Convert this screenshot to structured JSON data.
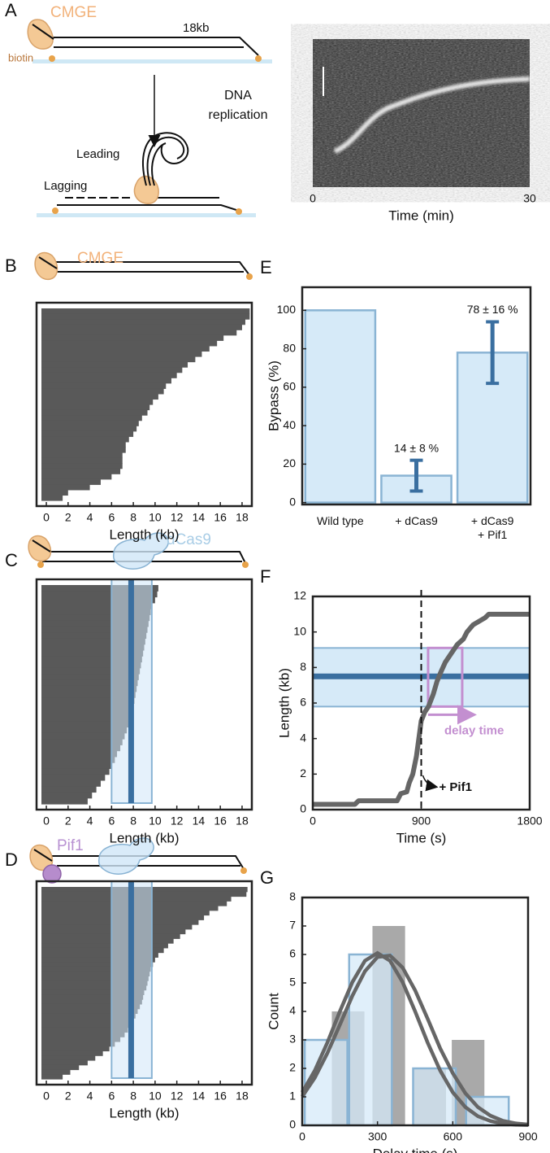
{
  "panels": [
    "A",
    "B",
    "C",
    "D",
    "E",
    "F",
    "G"
  ],
  "diagram": {
    "A": {
      "protein": "CMGE",
      "anchor": "biotin",
      "length": "18kb",
      "step": [
        "DNA",
        "replication"
      ],
      "leading": "Leading",
      "lagging": "Lagging"
    },
    "B": {
      "protein": "CMGE"
    },
    "C": {
      "block": "dCas9"
    },
    "D": {
      "helper": "Pif1"
    }
  },
  "chart_data": [
    {
      "type": "image",
      "xlabel": "Time (min)",
      "xlim": [
        0,
        30
      ],
      "xticks": [
        0,
        30
      ]
    },
    {
      "type": "raster",
      "xlabel": "Length (kb)",
      "color": "#595959",
      "xlim": [
        -0.9,
        18.9
      ],
      "xticks": [
        0,
        2,
        4,
        6,
        8,
        10,
        12,
        14,
        16,
        18
      ],
      "values": [
        18.7,
        18.7,
        18.3,
        18.0,
        17.5,
        16.3,
        15.7,
        15.0,
        14.3,
        13.7,
        13.0,
        12.5,
        12.0,
        11.5,
        11.0,
        10.8,
        10.3,
        9.8,
        9.5,
        9.3,
        8.8,
        8.5,
        8.3,
        8.0,
        7.6,
        7.3,
        7.3,
        7.0,
        7.0,
        7.0,
        6.8,
        6.0,
        5.0,
        4.0,
        2.0,
        1.5
      ]
    },
    {
      "type": "raster",
      "xlabel": "Length (kb)",
      "color": "#595959",
      "xlim": [
        -0.9,
        18.9
      ],
      "xticks": [
        0,
        2,
        4,
        6,
        8,
        10,
        12,
        14,
        16,
        18
      ],
      "band": [
        6,
        9.7
      ],
      "target": 7.8,
      "values": [
        10.3,
        10.2,
        10.0,
        9.7,
        9.6,
        9.5,
        9.4,
        9.3,
        9.2,
        9.1,
        9.0,
        8.9,
        8.8,
        8.7,
        8.6,
        8.5,
        8.4,
        8.3,
        8.2,
        8.1,
        8.0,
        7.9,
        7.8,
        7.6,
        7.4,
        7.2,
        7.0,
        6.8,
        6.5,
        6.3,
        6.0,
        5.8,
        5.4,
        5.0,
        4.6,
        4.2,
        3.8
      ]
    },
    {
      "type": "raster",
      "xlabel": "Length (kb)",
      "color": "#595959",
      "xlim": [
        -0.9,
        18.9
      ],
      "xticks": [
        0,
        2,
        4,
        6,
        8,
        10,
        12,
        14,
        16,
        18
      ],
      "band": [
        6,
        9.7
      ],
      "target": 7.8,
      "values": [
        18.5,
        18.4,
        17.0,
        16.6,
        15.8,
        15.0,
        14.5,
        14.0,
        13.4,
        12.8,
        12.3,
        11.7,
        11.2,
        10.8,
        10.3,
        10.0,
        9.8,
        9.6,
        9.5,
        9.4,
        9.3,
        9.2,
        9.0,
        8.9,
        8.8,
        8.6,
        8.4,
        8.2,
        8.0,
        7.8,
        7.5,
        7.2,
        6.8,
        6.3,
        5.8,
        5.2,
        4.5,
        3.8,
        3.0,
        2.2,
        1.5
      ]
    },
    {
      "type": "bar",
      "ylabel": "Bypass (%)",
      "categories": [
        "Wild type",
        "+ dCas9",
        "+ dCas9\n+ Pif1"
      ],
      "values": [
        100,
        14,
        78
      ],
      "errors": [
        null,
        8,
        16
      ],
      "value_labels": [
        null,
        "14 ± 8 %",
        "78 ± 16 %"
      ],
      "color": "#d6eaf8",
      "edgecolor": "#8ab4d4",
      "errorcolor": "#3a6fa0",
      "ylim": [
        -1,
        112
      ],
      "yticks": [
        0,
        20,
        40,
        60,
        80,
        100
      ]
    },
    {
      "type": "line",
      "xlabel": "Time (s)",
      "ylabel": "Length (kb)",
      "color": "#666666",
      "x": [
        0,
        350,
        380,
        700,
        730,
        780,
        800,
        830,
        860,
        880,
        900,
        930,
        960,
        1000,
        1030,
        1060,
        1100,
        1150,
        1200,
        1250,
        1280,
        1330,
        1380,
        1430,
        1460,
        1800
      ],
      "values": [
        0.3,
        0.3,
        0.5,
        0.5,
        0.9,
        1.0,
        1.5,
        2.0,
        3.0,
        4.0,
        5.0,
        5.5,
        5.8,
        6.5,
        7.2,
        7.7,
        8.3,
        8.8,
        9.3,
        9.6,
        10.0,
        10.4,
        10.6,
        10.8,
        11.0,
        11.0
      ],
      "band": [
        5.8,
        9.1
      ],
      "target": 7.5,
      "event": 900,
      "delay": [
        957,
        1240
      ],
      "annotations": [
        "delay time",
        "+ Pif1"
      ],
      "xlim": [
        0,
        1800
      ],
      "xticks": [
        0,
        900,
        1800
      ],
      "ylim": [
        0,
        12
      ],
      "yticks": [
        0,
        2,
        4,
        6,
        8,
        10,
        12
      ]
    },
    {
      "type": "hist",
      "xlabel": "Delay time (s)",
      "ylabel": "Count",
      "series": [
        {
          "color": "#8c8c8c",
          "edgecolor": "none",
          "width": 130,
          "x": [
            183,
            345,
            508,
            661
          ],
          "values": [
            4,
            7,
            2,
            3
          ]
        },
        {
          "color": "#d6eaf8",
          "edgecolor": "#8ab4d4",
          "width": 170,
          "x": [
            95,
            272,
            527,
            738
          ],
          "values": [
            3,
            6,
            2,
            1
          ]
        }
      ],
      "fit_color": "#666666",
      "fit_x": [
        0,
        50,
        100,
        150,
        200,
        250,
        300,
        350,
        400,
        450,
        500,
        550,
        600,
        650,
        700,
        750,
        800,
        850,
        900
      ],
      "fits": [
        {
          "values": [
            1.16,
            1.92,
            2.9,
            4.0,
            5.03,
            5.78,
            6.05,
            5.78,
            5.03,
            4.0,
            2.9,
            1.92,
            1.16,
            0.64,
            0.32,
            0.15,
            0.06,
            0.02,
            0.01
          ]
        },
        {
          "values": [
            1.01,
            1.67,
            2.53,
            3.53,
            4.55,
            5.41,
            5.91,
            5.96,
            5.54,
            4.74,
            3.74,
            2.7,
            1.83,
            1.13,
            0.64,
            0.34,
            0.16,
            0.07,
            0.03
          ]
        }
      ],
      "xlim": [
        0,
        900
      ],
      "xticks": [
        0,
        300,
        600,
        900
      ],
      "ylim": [
        0,
        8
      ],
      "yticks": [
        0,
        1,
        2,
        3,
        4,
        5,
        6,
        7,
        8
      ]
    }
  ]
}
